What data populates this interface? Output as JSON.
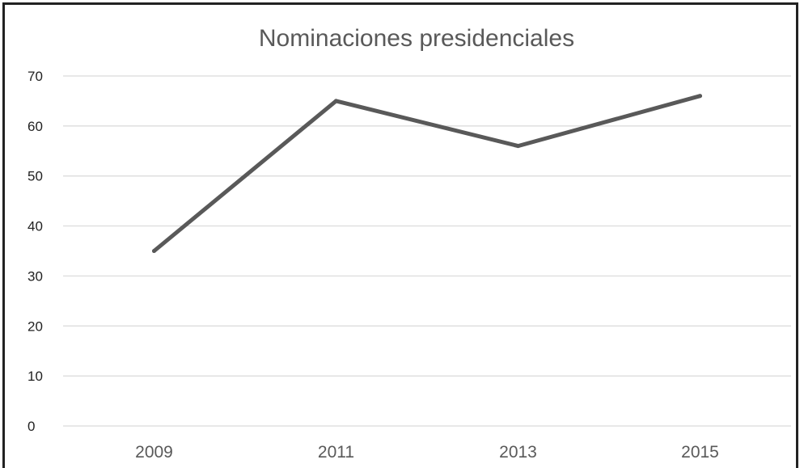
{
  "chart_data": {
    "type": "line",
    "title": "Nominaciones presidenciales",
    "xlabel": "",
    "ylabel": "",
    "categories": [
      "2009",
      "2011",
      "2013",
      "2015"
    ],
    "series": [
      {
        "values": [
          35,
          65,
          56,
          66
        ]
      }
    ],
    "ylim": [
      0,
      70
    ],
    "yticks": [
      "0",
      "10",
      "20",
      "30",
      "40",
      "50",
      "60",
      "70"
    ],
    "grid": true,
    "legend": "none",
    "colors": {
      "line": "#595959",
      "grid": "#d9d9d9",
      "title": "#595959",
      "frame": "#222222"
    }
  }
}
